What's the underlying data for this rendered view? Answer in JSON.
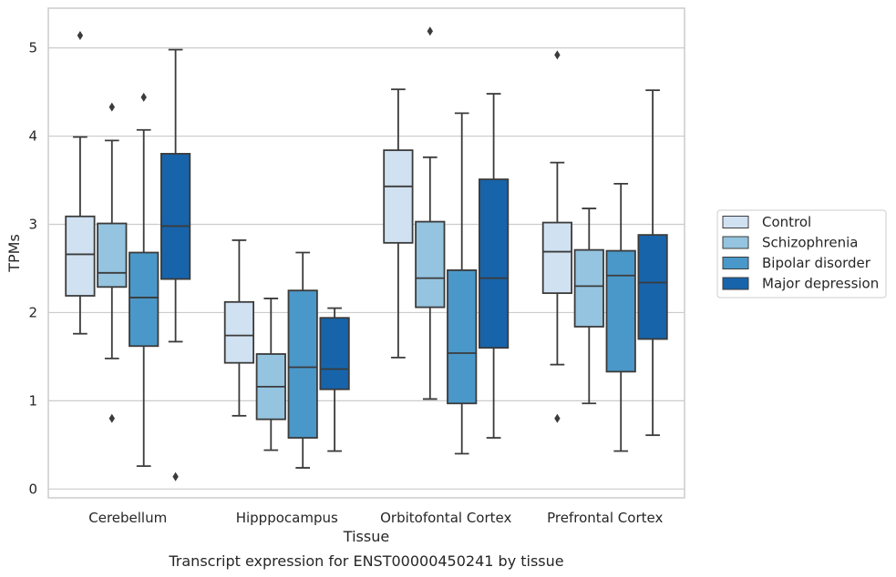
{
  "chart_data": {
    "type": "box",
    "caption": "Transcript expression for ENST00000450241 by tissue",
    "xlabel": "Tissue",
    "ylabel": "TPMs",
    "ylim": [
      -0.1,
      5.45
    ],
    "yticks": [
      0,
      1,
      2,
      3,
      4,
      5
    ],
    "grid": "horizontal",
    "legend_position": "right",
    "categories": [
      "Cerebellum",
      "Hipppocampus",
      "Orbitofontal Cortex",
      "Prefrontal Cortex"
    ],
    "series": [
      {
        "name": "Control",
        "color": "#d0e1f2",
        "boxes": [
          {
            "whislo": 1.76,
            "q1": 2.19,
            "med": 2.66,
            "q3": 3.09,
            "whishi": 3.99,
            "fliers": [
              5.14
            ]
          },
          {
            "whislo": 0.83,
            "q1": 1.43,
            "med": 1.74,
            "q3": 2.12,
            "whishi": 2.82,
            "fliers": []
          },
          {
            "whislo": 1.49,
            "q1": 2.79,
            "med": 3.43,
            "q3": 3.84,
            "whishi": 4.53,
            "fliers": []
          },
          {
            "whislo": 1.41,
            "q1": 2.22,
            "med": 2.69,
            "q3": 3.02,
            "whishi": 3.7,
            "fliers": [
              0.8,
              4.92
            ]
          }
        ]
      },
      {
        "name": "Schizophrenia",
        "color": "#94c4df",
        "boxes": [
          {
            "whislo": 1.48,
            "q1": 2.29,
            "med": 2.45,
            "q3": 3.01,
            "whishi": 3.95,
            "fliers": [
              0.8,
              4.33
            ]
          },
          {
            "whislo": 0.44,
            "q1": 0.79,
            "med": 1.16,
            "q3": 1.53,
            "whishi": 2.16,
            "fliers": []
          },
          {
            "whislo": 1.02,
            "q1": 2.06,
            "med": 2.39,
            "q3": 3.03,
            "whishi": 3.76,
            "fliers": [
              5.19
            ]
          },
          {
            "whislo": 0.97,
            "q1": 1.84,
            "med": 2.3,
            "q3": 2.71,
            "whishi": 3.18,
            "fliers": []
          }
        ]
      },
      {
        "name": "Bipolar disorder",
        "color": "#4a98c9",
        "boxes": [
          {
            "whislo": 0.26,
            "q1": 1.62,
            "med": 2.17,
            "q3": 2.68,
            "whishi": 4.07,
            "fliers": [
              4.44
            ]
          },
          {
            "whislo": 0.24,
            "q1": 0.58,
            "med": 1.38,
            "q3": 2.25,
            "whishi": 2.68,
            "fliers": []
          },
          {
            "whislo": 0.4,
            "q1": 0.97,
            "med": 1.54,
            "q3": 2.48,
            "whishi": 4.26,
            "fliers": []
          },
          {
            "whislo": 0.43,
            "q1": 1.33,
            "med": 2.42,
            "q3": 2.7,
            "whishi": 3.46,
            "fliers": []
          }
        ]
      },
      {
        "name": "Major depression",
        "color": "#1764ab",
        "boxes": [
          {
            "whislo": 1.67,
            "q1": 2.38,
            "med": 2.98,
            "q3": 3.8,
            "whishi": 4.98,
            "fliers": [
              0.14
            ]
          },
          {
            "whislo": 0.43,
            "q1": 1.13,
            "med": 1.36,
            "q3": 1.94,
            "whishi": 2.05,
            "fliers": []
          },
          {
            "whislo": 0.58,
            "q1": 1.6,
            "med": 2.39,
            "q3": 3.51,
            "whishi": 4.48,
            "fliers": []
          },
          {
            "whislo": 0.61,
            "q1": 1.7,
            "med": 2.34,
            "q3": 2.88,
            "whishi": 4.52,
            "fliers": []
          }
        ]
      }
    ]
  }
}
